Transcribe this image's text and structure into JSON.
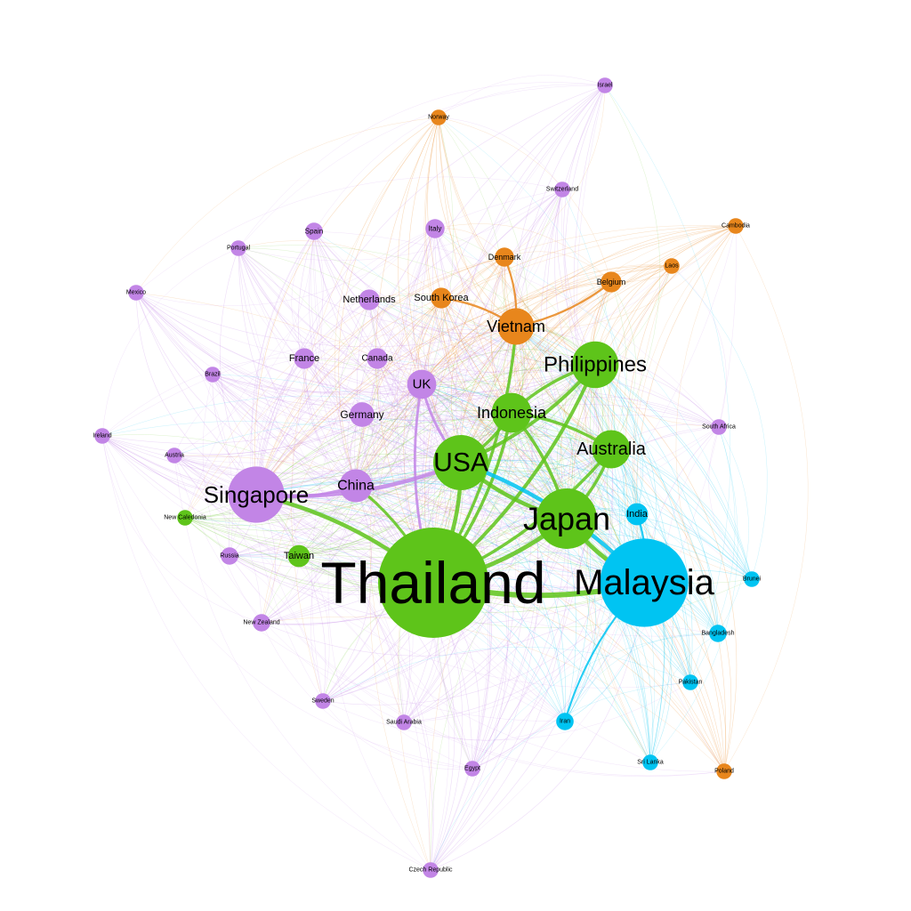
{
  "colors": {
    "green": "#5ec41a",
    "purple": "#c285e6",
    "orange": "#e8861c",
    "cyan": "#00c4f2"
  },
  "nodes": [
    {
      "id": "thailand",
      "label": "Thailand",
      "group": "green",
      "weight": 100
    },
    {
      "id": "malaysia",
      "label": "Malaysia",
      "group": "cyan",
      "weight": 64
    },
    {
      "id": "japan",
      "label": "Japan",
      "group": "green",
      "weight": 30
    },
    {
      "id": "usa",
      "label": "USA",
      "group": "green",
      "weight": 25
    },
    {
      "id": "singapore",
      "label": "Singapore",
      "group": "purple",
      "weight": 26
    },
    {
      "id": "philippines",
      "label": "Philippines",
      "group": "green",
      "weight": 18
    },
    {
      "id": "vietnam",
      "label": "Vietnam",
      "group": "orange",
      "weight": 11
    },
    {
      "id": "indonesia",
      "label": "Indonesia",
      "group": "green",
      "weight": 13
    },
    {
      "id": "australia",
      "label": "Australia",
      "group": "green",
      "weight": 12
    },
    {
      "id": "china",
      "label": "China",
      "group": "purple",
      "weight": 9
    },
    {
      "id": "uk",
      "label": "UK",
      "group": "purple",
      "weight": 7
    },
    {
      "id": "germany",
      "label": "Germany",
      "group": "purple",
      "weight": 5
    },
    {
      "id": "india",
      "label": "India",
      "group": "cyan",
      "weight": 4
    },
    {
      "id": "taiwan",
      "label": "Taiwan",
      "group": "green",
      "weight": 4
    },
    {
      "id": "france",
      "label": "France",
      "group": "purple",
      "weight": 3.5
    },
    {
      "id": "canada",
      "label": "Canada",
      "group": "purple",
      "weight": 3.5
    },
    {
      "id": "netherlands",
      "label": "Netherlands",
      "group": "purple",
      "weight": 3.5
    },
    {
      "id": "southkorea",
      "label": "South Korea",
      "group": "orange",
      "weight": 3.5
    },
    {
      "id": "belgium",
      "label": "Belgium",
      "group": "orange",
      "weight": 3.5
    },
    {
      "id": "denmark",
      "label": "Denmark",
      "group": "orange",
      "weight": 3
    },
    {
      "id": "italy",
      "label": "Italy",
      "group": "purple",
      "weight": 3
    },
    {
      "id": "spain",
      "label": "Spain",
      "group": "purple",
      "weight": 2.5
    },
    {
      "id": "portugal",
      "label": "Portugal",
      "group": "purple",
      "weight": 2
    },
    {
      "id": "mexico",
      "label": "Mexico",
      "group": "purple",
      "weight": 2
    },
    {
      "id": "brazil",
      "label": "Brazil",
      "group": "purple",
      "weight": 2
    },
    {
      "id": "ireland",
      "label": "Ireland",
      "group": "purple",
      "weight": 2
    },
    {
      "id": "austria",
      "label": "Austria",
      "group": "purple",
      "weight": 2
    },
    {
      "id": "newcaledonia",
      "label": "New Caledonia",
      "group": "green",
      "weight": 2
    },
    {
      "id": "russia",
      "label": "Russia",
      "group": "purple",
      "weight": 2.5
    },
    {
      "id": "newzealand",
      "label": "New Zealand",
      "group": "purple",
      "weight": 2.5
    },
    {
      "id": "sweden",
      "label": "Sweden",
      "group": "purple",
      "weight": 2
    },
    {
      "id": "saudiarabia",
      "label": "Saudi Arabia",
      "group": "purple",
      "weight": 2
    },
    {
      "id": "egypt",
      "label": "Egypt",
      "group": "purple",
      "weight": 2
    },
    {
      "id": "czech",
      "label": "Czech Republic",
      "group": "purple",
      "weight": 2
    },
    {
      "id": "iran",
      "label": "Iran",
      "group": "cyan",
      "weight": 2.5
    },
    {
      "id": "srilanka",
      "label": "Sri Lanka",
      "group": "cyan",
      "weight": 2
    },
    {
      "id": "poland",
      "label": "Poland",
      "group": "orange",
      "weight": 2
    },
    {
      "id": "pakistan",
      "label": "Pakistan",
      "group": "cyan",
      "weight": 2
    },
    {
      "id": "bangladesh",
      "label": "Bangladesh",
      "group": "cyan",
      "weight": 2.5
    },
    {
      "id": "brunei",
      "label": "Brunei",
      "group": "cyan",
      "weight": 2
    },
    {
      "id": "southafrica",
      "label": "South Africa",
      "group": "purple",
      "weight": 2
    },
    {
      "id": "laos",
      "label": "Laos",
      "group": "orange",
      "weight": 2
    },
    {
      "id": "cambodia",
      "label": "Cambodia",
      "group": "orange",
      "weight": 2
    },
    {
      "id": "switzerland",
      "label": "Switzerland",
      "group": "purple",
      "weight": 2
    },
    {
      "id": "norway",
      "label": "Norway",
      "group": "orange",
      "weight": 2
    },
    {
      "id": "israel",
      "label": "Israel",
      "group": "purple",
      "weight": 2
    }
  ],
  "strong_edges": [
    [
      "thailand",
      "japan"
    ],
    [
      "thailand",
      "usa"
    ],
    [
      "thailand",
      "malaysia"
    ],
    [
      "thailand",
      "philippines"
    ],
    [
      "thailand",
      "indonesia"
    ],
    [
      "thailand",
      "singapore"
    ],
    [
      "thailand",
      "australia"
    ],
    [
      "thailand",
      "china"
    ],
    [
      "thailand",
      "vietnam"
    ],
    [
      "usa",
      "japan"
    ],
    [
      "usa",
      "indonesia"
    ],
    [
      "usa",
      "philippines"
    ],
    [
      "japan",
      "indonesia"
    ],
    [
      "japan",
      "australia"
    ],
    [
      "japan",
      "malaysia"
    ],
    [
      "malaysia",
      "india"
    ],
    [
      "malaysia",
      "iran"
    ],
    [
      "malaysia",
      "usa"
    ],
    [
      "vietnam",
      "southkorea"
    ],
    [
      "vietnam",
      "belgium"
    ],
    [
      "vietnam",
      "denmark"
    ],
    [
      "philippines",
      "indonesia"
    ],
    [
      "singapore",
      "usa"
    ],
    [
      "singapore",
      "china"
    ],
    [
      "uk",
      "usa"
    ],
    [
      "uk",
      "thailand"
    ],
    [
      "australia",
      "indonesia"
    ]
  ]
}
